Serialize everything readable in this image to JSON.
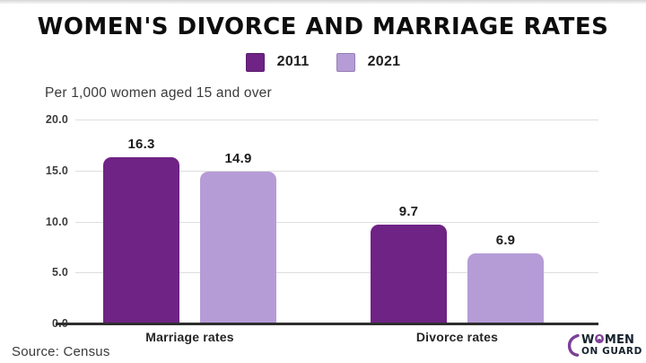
{
  "title": "WOMEN'S DIVORCE AND MARRIAGE RATES",
  "subtitle": "Per 1,000 women aged 15 and over",
  "source": "Source: Census",
  "legend": [
    {
      "label": "2011",
      "color": "#6F2385"
    },
    {
      "label": "2021",
      "color": "#B59CD7"
    }
  ],
  "colors": {
    "series_2011": "#6F2385",
    "series_2021": "#B59CD7",
    "gridline": "#dedede",
    "axis": "#2e2e2e",
    "title_text": "#0d0d0d",
    "logo_purple": "#7c3f97",
    "logo_navy": "#16212e"
  },
  "chart_data": {
    "type": "bar",
    "title": "WOMEN'S DIVORCE AND MARRIAGE RATES",
    "subtitle": "Per 1,000 women aged 15 and over",
    "categories": [
      "Marriage rates",
      "Divorce rates"
    ],
    "series": [
      {
        "name": "2011",
        "color": "#6F2385",
        "values": [
          16.3,
          9.7
        ]
      },
      {
        "name": "2021",
        "color": "#B59CD7",
        "values": [
          14.9,
          6.9
        ]
      }
    ],
    "xlabel": "",
    "ylabel": "Per 1,000 women aged 15 and over",
    "ylim": [
      0,
      20
    ],
    "yticks": [
      "20.0",
      "15.0",
      "10.0",
      "5.0",
      "0.0"
    ],
    "grid": true,
    "legend_position": "top"
  },
  "logo": {
    "line1_pre": "W",
    "line1_o": "O",
    "line1_post": "MEN",
    "line2": "ON GUARD"
  }
}
